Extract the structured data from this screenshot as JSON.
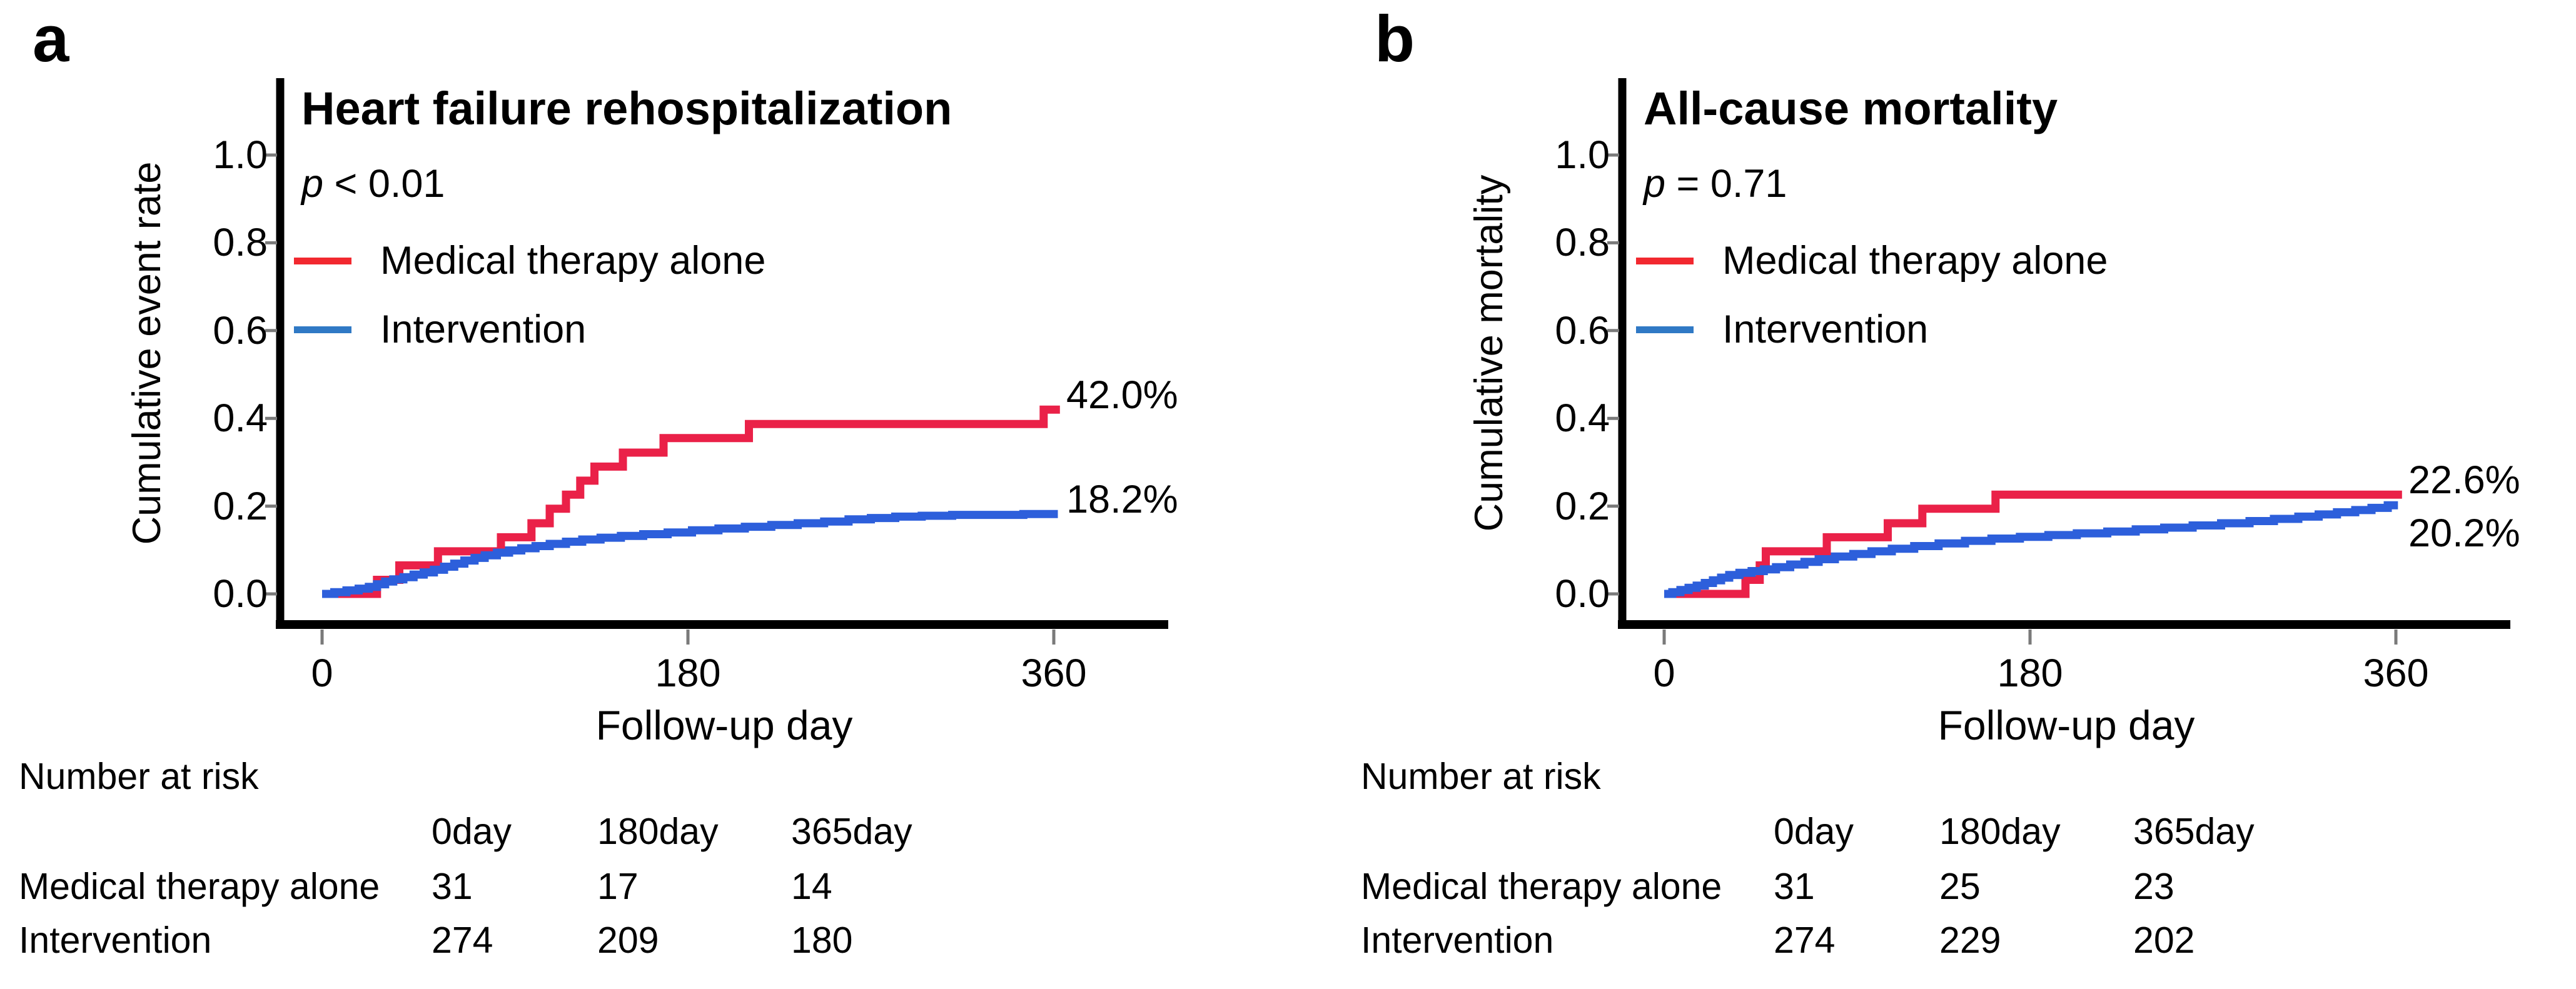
{
  "chart_data": [
    {
      "type": "line",
      "subtype": "kaplan-meier-step",
      "letter": "a",
      "title": "Heart failure rehospitalization",
      "p_italic": "p",
      "p_rest": " < 0.01",
      "xlabel": "Follow-up day",
      "ylabel": "Cumulative event rate",
      "x_ticks": [
        0,
        180,
        360
      ],
      "y_ticks": [
        0.0,
        0.2,
        0.4,
        0.6,
        0.8,
        1.0
      ],
      "xlim": [
        0,
        415
      ],
      "ylim": [
        0,
        1.05
      ],
      "grid": false,
      "legend_position": "inside-top-left",
      "series": [
        {
          "name": "Medical therapy alone",
          "color": "#ea2148",
          "legend_color": "#f2282f",
          "end_label": "42.0%",
          "end_label_side": "above",
          "end_day": 363,
          "steps": [
            [
              27,
              0.032
            ],
            [
              38,
              0.065
            ],
            [
              57,
              0.097
            ],
            [
              88,
              0.129
            ],
            [
              103,
              0.161
            ],
            [
              112,
              0.194
            ],
            [
              120,
              0.226
            ],
            [
              127,
              0.258
            ],
            [
              134,
              0.29
            ],
            [
              148,
              0.322
            ],
            [
              168,
              0.355
            ],
            [
              210,
              0.387
            ],
            [
              355,
              0.42
            ]
          ]
        },
        {
          "name": "Intervention",
          "color": "#2d5fdb",
          "legend_color": "#3079c5",
          "end_label": "18.2%",
          "end_label_side": "above",
          "end_day": 362,
          "steps": [
            [
              6,
              0.004
            ],
            [
              12,
              0.008
            ],
            [
              18,
              0.012
            ],
            [
              23,
              0.016
            ],
            [
              27,
              0.022
            ],
            [
              31,
              0.028
            ],
            [
              35,
              0.033
            ],
            [
              40,
              0.038
            ],
            [
              45,
              0.044
            ],
            [
              50,
              0.049
            ],
            [
              55,
              0.055
            ],
            [
              60,
              0.062
            ],
            [
              65,
              0.069
            ],
            [
              70,
              0.076
            ],
            [
              75,
              0.082
            ],
            [
              80,
              0.088
            ],
            [
              86,
              0.094
            ],
            [
              92,
              0.099
            ],
            [
              98,
              0.104
            ],
            [
              105,
              0.109
            ],
            [
              112,
              0.114
            ],
            [
              120,
              0.119
            ],
            [
              128,
              0.124
            ],
            [
              137,
              0.128
            ],
            [
              147,
              0.132
            ],
            [
              158,
              0.136
            ],
            [
              170,
              0.14
            ],
            [
              182,
              0.145
            ],
            [
              195,
              0.149
            ],
            [
              208,
              0.153
            ],
            [
              221,
              0.157
            ],
            [
              234,
              0.161
            ],
            [
              247,
              0.165
            ],
            [
              259,
              0.17
            ],
            [
              270,
              0.173
            ],
            [
              282,
              0.176
            ],
            [
              295,
              0.178
            ],
            [
              310,
              0.18
            ],
            [
              345,
              0.182
            ]
          ]
        }
      ],
      "number_at_risk": {
        "label": "Number at risk",
        "col_headers": [
          "0day",
          "180day",
          "365day"
        ],
        "rows": [
          {
            "name": "Medical therapy alone",
            "values": [
              31,
              17,
              14
            ]
          },
          {
            "name": "Intervention",
            "values": [
              274,
              209,
              180
            ]
          }
        ]
      }
    },
    {
      "type": "line",
      "subtype": "kaplan-meier-step",
      "letter": "b",
      "title": "All-cause mortality",
      "p_italic": "p",
      "p_rest": " = 0.71",
      "xlabel": "Follow-up day",
      "ylabel": "Cumulative mortality",
      "x_ticks": [
        0,
        180,
        360
      ],
      "y_ticks": [
        0.0,
        0.2,
        0.4,
        0.6,
        0.8,
        1.0
      ],
      "xlim": [
        0,
        415
      ],
      "ylim": [
        0,
        1.05
      ],
      "grid": false,
      "legend_position": "inside-top-left",
      "series": [
        {
          "name": "Medical therapy alone",
          "color": "#ea2148",
          "legend_color": "#f2282f",
          "end_label": "22.6%",
          "end_label_side": "above",
          "end_day": 363,
          "steps": [
            [
              40,
              0.032
            ],
            [
              47,
              0.065
            ],
            [
              50,
              0.097
            ],
            [
              80,
              0.129
            ],
            [
              110,
              0.161
            ],
            [
              127,
              0.194
            ],
            [
              163,
              0.226
            ]
          ]
        },
        {
          "name": "Intervention",
          "color": "#2d5fdb",
          "legend_color": "#3079c5",
          "end_label": "20.2%",
          "end_label_side": "below",
          "end_day": 361,
          "steps": [
            [
              4,
              0.004
            ],
            [
              8,
              0.009
            ],
            [
              12,
              0.014
            ],
            [
              16,
              0.019
            ],
            [
              20,
              0.025
            ],
            [
              24,
              0.031
            ],
            [
              28,
              0.037
            ],
            [
              32,
              0.043
            ],
            [
              37,
              0.048
            ],
            [
              43,
              0.052
            ],
            [
              49,
              0.056
            ],
            [
              55,
              0.061
            ],
            [
              62,
              0.067
            ],
            [
              69,
              0.073
            ],
            [
              76,
              0.079
            ],
            [
              84,
              0.085
            ],
            [
              93,
              0.091
            ],
            [
              102,
              0.097
            ],
            [
              112,
              0.103
            ],
            [
              123,
              0.109
            ],
            [
              135,
              0.115
            ],
            [
              148,
              0.121
            ],
            [
              161,
              0.126
            ],
            [
              175,
              0.13
            ],
            [
              189,
              0.134
            ],
            [
              203,
              0.138
            ],
            [
              218,
              0.142
            ],
            [
              232,
              0.147
            ],
            [
              246,
              0.151
            ],
            [
              260,
              0.156
            ],
            [
              274,
              0.161
            ],
            [
              288,
              0.166
            ],
            [
              300,
              0.171
            ],
            [
              312,
              0.176
            ],
            [
              322,
              0.181
            ],
            [
              331,
              0.186
            ],
            [
              340,
              0.191
            ],
            [
              348,
              0.196
            ],
            [
              356,
              0.202
            ]
          ]
        }
      ],
      "number_at_risk": {
        "label": "Number at risk",
        "col_headers": [
          "0day",
          "180day",
          "365day"
        ],
        "rows": [
          {
            "name": "Medical therapy alone",
            "values": [
              31,
              25,
              23
            ]
          },
          {
            "name": "Intervention",
            "values": [
              274,
              229,
              202
            ]
          }
        ]
      }
    }
  ]
}
